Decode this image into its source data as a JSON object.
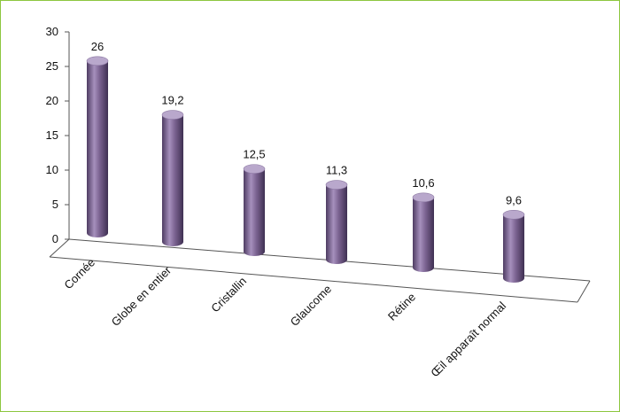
{
  "chart_data": {
    "type": "bar",
    "style": "3d-cylinder",
    "categories": [
      "Cornée",
      "Globe en entier",
      "Cristallin",
      "Glaucome",
      "Rétine",
      "Œil apparaît normal"
    ],
    "values": [
      26,
      19.2,
      12.5,
      11.3,
      10.6,
      9.6
    ],
    "value_labels": [
      "26",
      "19,2",
      "12,5",
      "11,3",
      "10,6",
      "9,6"
    ],
    "yticks": [
      "0",
      "5",
      "10",
      "15",
      "20",
      "25",
      "30"
    ],
    "ylim": [
      0,
      30
    ],
    "title": "",
    "xlabel": "",
    "ylabel": "",
    "grid": false,
    "legend": "none",
    "colors": {
      "bar": "#7b6391",
      "bar_dark": "#4e3c62",
      "bar_light": "#a690bd",
      "top": "#b9a8cc",
      "frame": "#8dc63f",
      "axis": "#555555"
    }
  }
}
